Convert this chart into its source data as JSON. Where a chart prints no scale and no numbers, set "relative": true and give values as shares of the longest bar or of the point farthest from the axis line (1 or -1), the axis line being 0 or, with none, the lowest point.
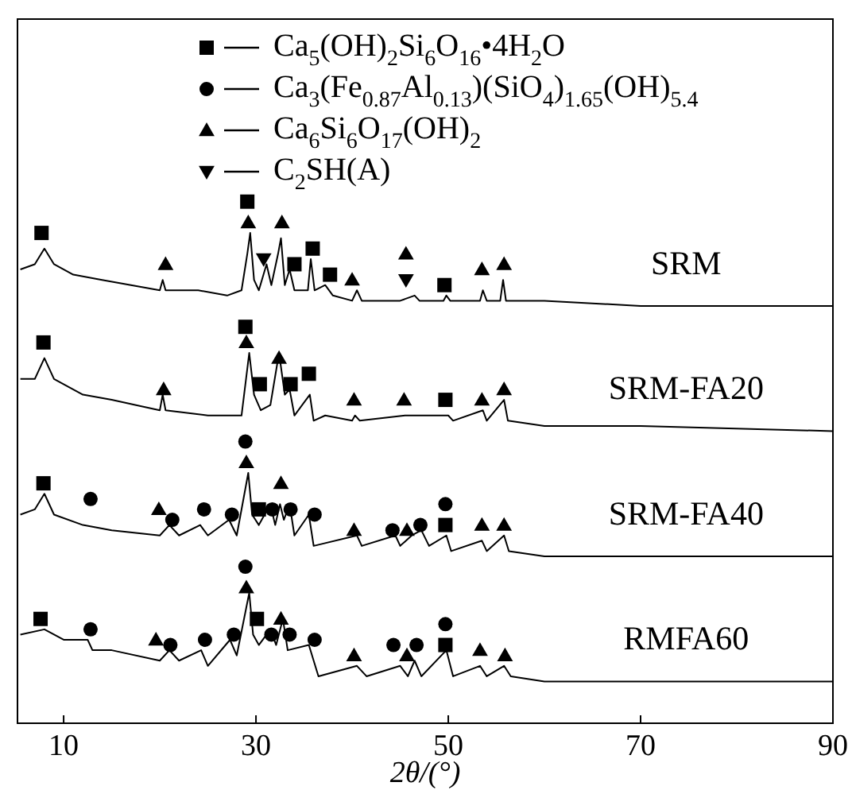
{
  "chart_data": {
    "type": "line",
    "relative": true,
    "xlabel": "2θ/(°)",
    "xlim": [
      5.2,
      90
    ],
    "xticks": [
      10,
      30,
      50,
      70,
      90
    ],
    "legend": "top",
    "series": [
      {
        "name": "SRM",
        "color": "#000000",
        "x": [
          5.5,
          7,
          8,
          9,
          11,
          14,
          17,
          20,
          20.3,
          20.6,
          24,
          27,
          28.5,
          29.1,
          29.4,
          29.8,
          30.3,
          31.1,
          31.6,
          32.3,
          32.6,
          33.0,
          33.5,
          34,
          35.4,
          35.7,
          36.1,
          37.2,
          38,
          40,
          40.5,
          41,
          45,
          46.5,
          47,
          49.5,
          49.8,
          50.2,
          53.3,
          53.6,
          54,
          55.4,
          55.7,
          56,
          60,
          70,
          80,
          90
        ],
        "values": [
          0.87,
          0.88,
          0.91,
          0.88,
          0.86,
          0.85,
          0.84,
          0.83,
          0.85,
          0.83,
          0.83,
          0.82,
          0.83,
          0.9,
          0.94,
          0.85,
          0.83,
          0.88,
          0.84,
          0.9,
          0.93,
          0.84,
          0.87,
          0.83,
          0.83,
          0.89,
          0.83,
          0.84,
          0.82,
          0.81,
          0.83,
          0.81,
          0.81,
          0.82,
          0.81,
          0.81,
          0.82,
          0.81,
          0.81,
          0.83,
          0.81,
          0.81,
          0.85,
          0.81,
          0.81,
          0.8,
          0.8,
          0.8
        ]
      },
      {
        "name": "SRM-FA20",
        "color": "#000000",
        "x": [
          5.5,
          7,
          8,
          9,
          12,
          15,
          20,
          20.3,
          20.6,
          25,
          28.5,
          29.3,
          29.8,
          30.5,
          31.5,
          32.4,
          33,
          33.5,
          34,
          35.6,
          36,
          37.2,
          40,
          40.3,
          40.8,
          45.5,
          50,
          50.5,
          53.6,
          54,
          55.8,
          56.2,
          60,
          70,
          90
        ],
        "values": [
          0.66,
          0.66,
          0.7,
          0.66,
          0.63,
          0.62,
          0.6,
          0.63,
          0.6,
          0.59,
          0.59,
          0.71,
          0.63,
          0.6,
          0.61,
          0.71,
          0.63,
          0.64,
          0.59,
          0.63,
          0.58,
          0.59,
          0.58,
          0.59,
          0.58,
          0.59,
          0.59,
          0.58,
          0.6,
          0.58,
          0.62,
          0.58,
          0.57,
          0.57,
          0.56
        ]
      },
      {
        "name": "SRM-FA40",
        "color": "#000000",
        "x": [
          5.5,
          7,
          8,
          9,
          12,
          15,
          20,
          21,
          22,
          24.2,
          25,
          27.2,
          28,
          29.2,
          29.6,
          30.3,
          31.5,
          32,
          32.5,
          32.9,
          33.5,
          34,
          35.5,
          36,
          40.5,
          41,
          44.5,
          45,
          46.2,
          47.2,
          48,
          49.8,
          50.3,
          53.5,
          54,
          55.8,
          56.3,
          60,
          70,
          90
        ],
        "values": [
          0.4,
          0.41,
          0.44,
          0.4,
          0.38,
          0.37,
          0.36,
          0.38,
          0.36,
          0.38,
          0.36,
          0.39,
          0.36,
          0.48,
          0.4,
          0.38,
          0.42,
          0.38,
          0.42,
          0.39,
          0.42,
          0.36,
          0.4,
          0.34,
          0.36,
          0.34,
          0.36,
          0.34,
          0.36,
          0.37,
          0.34,
          0.36,
          0.33,
          0.35,
          0.33,
          0.36,
          0.33,
          0.32,
          0.32,
          0.32
        ]
      },
      {
        "name": "RMFA60",
        "color": "#000000",
        "x": [
          5.5,
          8,
          10,
          12.5,
          13,
          15,
          20,
          21,
          22,
          24.3,
          25,
          27.3,
          28,
          29.3,
          29.7,
          30.3,
          31.5,
          32.1,
          32.8,
          33.3,
          35.5,
          36.5,
          40.5,
          41.5,
          45,
          45.8,
          46.5,
          47.2,
          49.8,
          50.5,
          53.3,
          54,
          55.8,
          56.5,
          60,
          70,
          90
        ],
        "values": [
          0.17,
          0.18,
          0.16,
          0.16,
          0.14,
          0.14,
          0.12,
          0.14,
          0.12,
          0.14,
          0.11,
          0.16,
          0.13,
          0.25,
          0.17,
          0.15,
          0.18,
          0.15,
          0.2,
          0.14,
          0.15,
          0.09,
          0.11,
          0.09,
          0.11,
          0.09,
          0.12,
          0.09,
          0.14,
          0.09,
          0.11,
          0.09,
          0.11,
          0.09,
          0.08,
          0.08,
          0.08
        ]
      },
      {
        "name": "Ca$_{5}$(OH)$_{2}$Si$_{6}$O$_{16}$•4H$_{2}$O",
        "type": "scatter",
        "marker": "square",
        "color": "#000000",
        "x": [
          7.7,
          29.1,
          34.0,
          35.9,
          37.7,
          49.6,
          7.9,
          28.9,
          30.4,
          33.6,
          35.5,
          49.7,
          7.9,
          30.3,
          49.7,
          7.6,
          30.1,
          49.7
        ],
        "values": [
          0.94,
          1.0,
          0.88,
          0.91,
          0.86,
          0.84,
          0.73,
          0.76,
          0.65,
          0.65,
          0.67,
          0.62,
          0.46,
          0.41,
          0.38,
          0.2,
          0.2,
          0.15
        ]
      },
      {
        "name": "Ca$_{3}$(Fe$_{0.87}$Al$_{0.13}$)(SiO$_{4}$)$_{1.65}$(OH)$_{5.4}$",
        "type": "scatter",
        "marker": "circle",
        "color": "#000000",
        "x": [
          12.8,
          21.3,
          24.6,
          27.5,
          28.9,
          31.7,
          33.6,
          36.1,
          44.2,
          47.1,
          49.7,
          12.8,
          21.1,
          24.7,
          27.7,
          28.9,
          31.6,
          33.5,
          36.1,
          44.3,
          46.7,
          49.7
        ],
        "values": [
          0.43,
          0.39,
          0.41,
          0.4,
          0.54,
          0.41,
          0.41,
          0.4,
          0.37,
          0.38,
          0.42,
          0.18,
          0.15,
          0.16,
          0.17,
          0.3,
          0.17,
          0.17,
          0.16,
          0.15,
          0.15,
          0.19
        ]
      },
      {
        "name": "Ca$_{6}$Si$_{6}$O$_{17}$(OH)$_{2}$",
        "type": "scatter",
        "marker": "triangle",
        "color": "#000000",
        "x": [
          20.6,
          29.2,
          32.7,
          40.0,
          45.6,
          53.5,
          55.8,
          20.4,
          29.0,
          32.4,
          40.2,
          45.4,
          53.5,
          55.8,
          19.9,
          29.0,
          32.6,
          40.2,
          45.7,
          53.5,
          55.8,
          19.6,
          29.0,
          32.6,
          40.2,
          45.7,
          53.3,
          55.9
        ],
        "values": [
          0.88,
          0.96,
          0.96,
          0.85,
          0.9,
          0.87,
          0.88,
          0.64,
          0.73,
          0.7,
          0.62,
          0.62,
          0.62,
          0.64,
          0.41,
          0.5,
          0.46,
          0.37,
          0.37,
          0.38,
          0.38,
          0.16,
          0.26,
          0.2,
          0.13,
          0.13,
          0.14,
          0.13
        ]
      },
      {
        "name": "C$_{2}$SH(A)",
        "type": "scatter",
        "marker": "triangle-down",
        "color": "#000000",
        "x": [
          30.8,
          45.6
        ],
        "values": [
          0.89,
          0.85
        ]
      }
    ]
  }
}
